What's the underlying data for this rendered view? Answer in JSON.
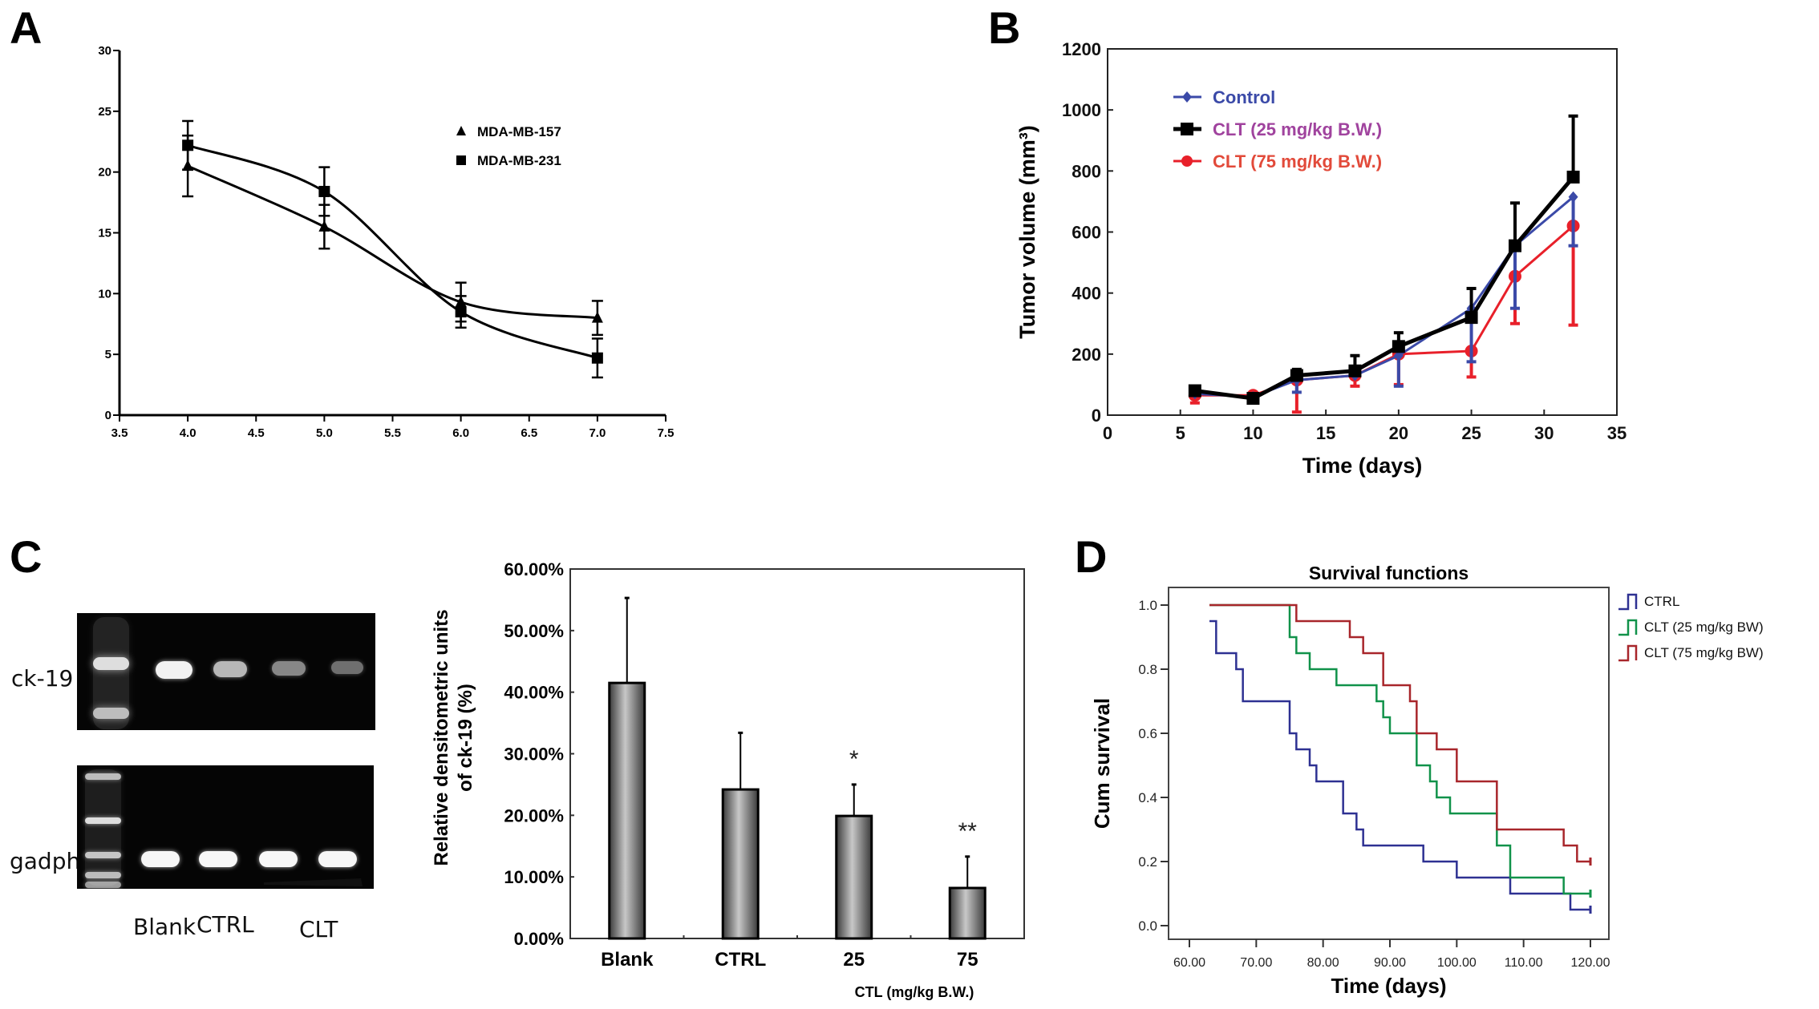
{
  "panels": {
    "A": "A",
    "B": "B",
    "C": "C",
    "D": "D"
  },
  "gel": {
    "row_labels": [
      "ck-19",
      "gadph"
    ],
    "lane_labels": [
      "Blank",
      "CTRL",
      "CLT"
    ],
    "ck19_band_intensity": [
      1.0,
      0.75,
      0.55,
      0.45
    ],
    "gadph_band_intensity": [
      1.0,
      1.0,
      1.0,
      1.0
    ],
    "gradient_wedge": "increasing dose"
  },
  "chart_data": [
    {
      "id": "A",
      "type": "line",
      "title": "",
      "xlabel": "",
      "ylabel": "",
      "xlim": [
        3.5,
        7.5
      ],
      "ylim": [
        0,
        30
      ],
      "xticks": [
        "3.5",
        "4.0",
        "4.5",
        "5.0",
        "5.5",
        "6.0",
        "6.5",
        "7.0",
        "7.5"
      ],
      "yticks": [
        "0",
        "5",
        "10",
        "15",
        "20",
        "25",
        "30"
      ],
      "legend_position": "top-right",
      "x": [
        4.0,
        5.0,
        6.0,
        7.0
      ],
      "series": [
        {
          "name": "MDA-MB-157",
          "marker": "triangle",
          "values": [
            20.5,
            15.5,
            9.3,
            8.0
          ],
          "err": [
            2.5,
            1.8,
            1.6,
            1.4
          ],
          "color": "#000000"
        },
        {
          "name": "MDA-MB-231",
          "marker": "square",
          "values": [
            22.2,
            18.4,
            8.5,
            4.7
          ],
          "err": [
            2.0,
            2.0,
            1.3,
            1.6
          ],
          "color": "#000000"
        }
      ]
    },
    {
      "id": "B",
      "type": "line",
      "title": "",
      "xlabel": "Time (days)",
      "ylabel": "Tumor volume (mm³)",
      "xlim": [
        0,
        35
      ],
      "ylim": [
        0,
        1200
      ],
      "xticks": [
        "0",
        "5",
        "10",
        "15",
        "20",
        "25",
        "30",
        "35"
      ],
      "yticks": [
        "0",
        "200",
        "400",
        "600",
        "800",
        "1000",
        "1200"
      ],
      "legend_position": "top-left",
      "x": [
        6,
        10,
        13,
        17,
        20,
        25,
        28,
        32
      ],
      "series": [
        {
          "name": "Control",
          "marker": "diamond",
          "color": "#3b4aa8",
          "label_color": "#3b4aa8",
          "values": [
            70,
            60,
            115,
            130,
            195,
            350,
            555,
            715
          ],
          "err_low": [
            0,
            0,
            40,
            0,
            100,
            175,
            205,
            160
          ]
        },
        {
          "name": "CLT (25 mg/kg B.W.)",
          "marker": "square",
          "color": "#000000",
          "label_color": "#a0439e",
          "values": [
            80,
            55,
            130,
            145,
            225,
            320,
            555,
            780
          ],
          "err_high": [
            0,
            0,
            20,
            50,
            45,
            95,
            140,
            200
          ]
        },
        {
          "name": "CLT (75 mg/kg B.W.)",
          "marker": "circle",
          "color": "#e8202a",
          "label_color": "#e24a3a",
          "values": [
            65,
            65,
            115,
            130,
            200,
            210,
            455,
            620
          ],
          "err_low": [
            25,
            0,
            105,
            35,
            100,
            85,
            155,
            325
          ]
        }
      ]
    },
    {
      "id": "C",
      "type": "bar",
      "title": "",
      "xlabel": "CTL (mg/kg B.W.)",
      "ylabel": "Relative densitometric units of ck-19 (%)",
      "ylabel_lines": [
        "Relative densitometric units",
        "of ck-19 (%)"
      ],
      "ylim": [
        0,
        60
      ],
      "yticks": [
        "0.00%",
        "10.00%",
        "20.00%",
        "30.00%",
        "40.00%",
        "50.00%",
        "60.00%"
      ],
      "categories": [
        "Blank",
        "CTRL",
        "25",
        "75"
      ],
      "values": [
        41.5,
        24.2,
        19.9,
        8.2
      ],
      "err": [
        13.8,
        9.2,
        5.1,
        5.1
      ],
      "annotations": [
        "",
        "",
        "*",
        "**"
      ]
    },
    {
      "id": "D",
      "type": "line",
      "subtype": "step",
      "title": "Survival functions",
      "xlabel": "Time (days)",
      "ylabel": "Cum survival",
      "xlim": [
        56.6,
        123.3
      ],
      "ylim": [
        -0.055,
        1.115
      ],
      "xticks": [
        "60.00",
        "70.00",
        "80.00",
        "90.00",
        "100.00",
        "110.00",
        "120.00"
      ],
      "xtick_values": [
        60,
        70,
        80,
        90,
        100,
        110,
        120
      ],
      "yticks": [
        "0.0",
        "0.2",
        "0.4",
        "0.6",
        "0.8",
        "1.0"
      ],
      "ytick_values": [
        0,
        0.2,
        0.4,
        0.6,
        0.8,
        1.0
      ],
      "legend_position": "right",
      "series": [
        {
          "name": "CTRL",
          "color": "#2e3192",
          "steps": [
            [
              63,
              0.95
            ],
            [
              64,
              0.85
            ],
            [
              67,
              0.8
            ],
            [
              68,
              0.7
            ],
            [
              75,
              0.6
            ],
            [
              76,
              0.55
            ],
            [
              78,
              0.5
            ],
            [
              79,
              0.45
            ],
            [
              83,
              0.35
            ],
            [
              85,
              0.3
            ],
            [
              86,
              0.25
            ],
            [
              95,
              0.2
            ],
            [
              100,
              0.15
            ],
            [
              108,
              0.1
            ],
            [
              117,
              0.05
            ],
            [
              120,
              0.05
            ]
          ]
        },
        {
          "name": "CLT (25 mg/kg BW)",
          "color": "#11924a",
          "steps": [
            [
              63,
              1.0
            ],
            [
              75,
              0.9
            ],
            [
              76,
              0.85
            ],
            [
              78,
              0.8
            ],
            [
              82,
              0.75
            ],
            [
              88,
              0.7
            ],
            [
              89,
              0.65
            ],
            [
              90,
              0.6
            ],
            [
              94,
              0.5
            ],
            [
              96,
              0.45
            ],
            [
              97,
              0.4
            ],
            [
              99,
              0.35
            ],
            [
              106,
              0.25
            ],
            [
              108,
              0.15
            ],
            [
              116,
              0.1
            ],
            [
              120,
              0.1
            ]
          ]
        },
        {
          "name": "CLT (75 mg/kg BW)",
          "color": "#a8262b",
          "steps": [
            [
              63,
              1.0
            ],
            [
              76,
              0.95
            ],
            [
              84,
              0.9
            ],
            [
              86,
              0.85
            ],
            [
              89,
              0.75
            ],
            [
              93,
              0.7
            ],
            [
              94,
              0.6
            ],
            [
              97,
              0.55
            ],
            [
              100,
              0.45
            ],
            [
              106,
              0.3
            ],
            [
              116,
              0.25
            ],
            [
              118,
              0.2
            ],
            [
              120,
              0.2
            ]
          ]
        }
      ]
    }
  ]
}
